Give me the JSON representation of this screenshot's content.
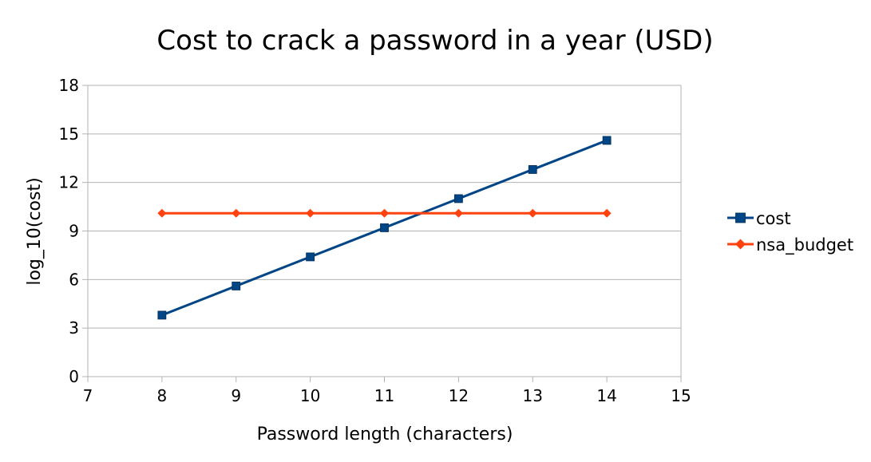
{
  "chart_data": {
    "type": "line",
    "title": "Cost to crack a password in a year (USD)",
    "xlabel": "Password length (characters)",
    "ylabel": "log_10(cost)",
    "xlim": [
      7,
      15
    ],
    "ylim": [
      0,
      18
    ],
    "xticks": [
      7,
      8,
      9,
      10,
      11,
      12,
      13,
      14,
      15
    ],
    "yticks": [
      0,
      3,
      6,
      9,
      12,
      15,
      18
    ],
    "grid": "horizontal",
    "legend_position": "right",
    "series": [
      {
        "name": "cost",
        "color": "#004586",
        "marker": "square",
        "x": [
          8,
          9,
          10,
          11,
          12,
          13,
          14
        ],
        "y": [
          3.8,
          5.6,
          7.4,
          9.2,
          11.0,
          12.8,
          14.6
        ]
      },
      {
        "name": "nsa_budget",
        "color": "#ff420e",
        "marker": "diamond",
        "x": [
          8,
          9,
          10,
          11,
          12,
          13,
          14
        ],
        "y": [
          10.1,
          10.1,
          10.1,
          10.1,
          10.1,
          10.1,
          10.1
        ]
      }
    ]
  }
}
